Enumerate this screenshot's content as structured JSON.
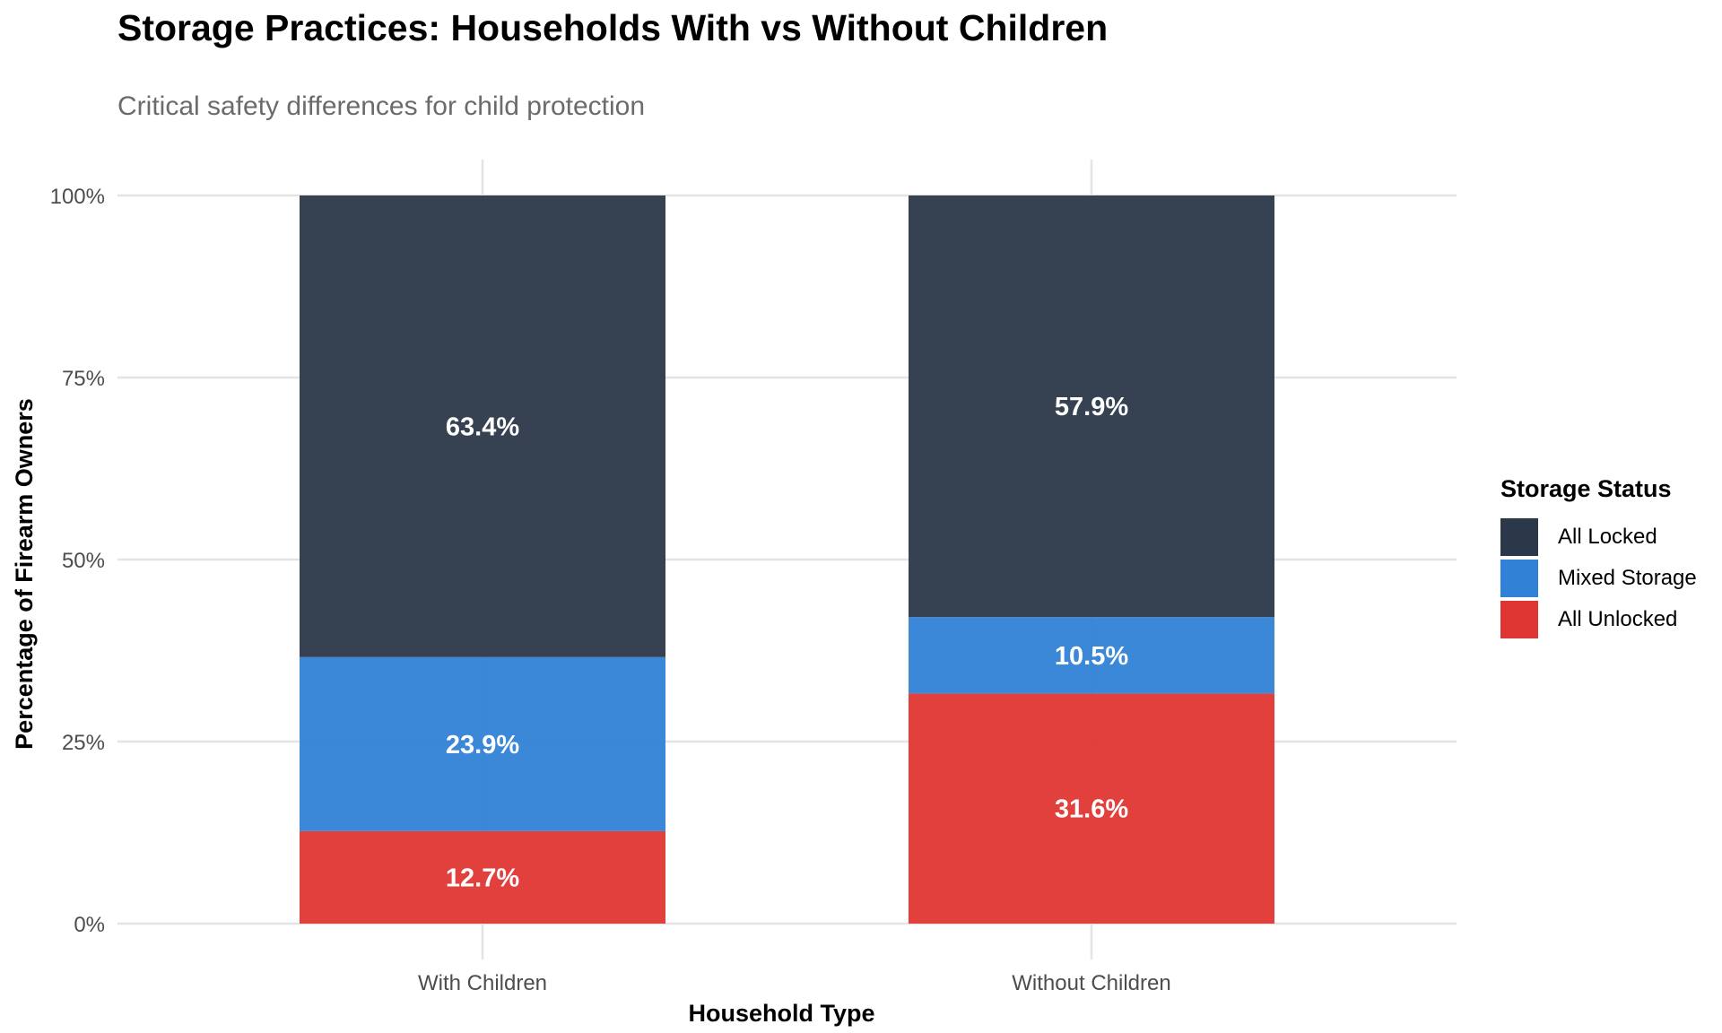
{
  "chart_data": {
    "type": "bar",
    "stacked": true,
    "title": "Storage Practices: Households With vs Without Children",
    "subtitle": "Critical safety differences for child protection",
    "xlabel": "Household Type",
    "ylabel": "Percentage of Firearm Owners",
    "categories": [
      "With Children",
      "Without Children"
    ],
    "ylim": [
      0,
      100
    ],
    "yticks": [
      0,
      25,
      50,
      75,
      100
    ],
    "ytick_labels": [
      "0%",
      "25%",
      "50%",
      "75%",
      "100%"
    ],
    "grid": true,
    "legend_title": "Storage Status",
    "legend_position": "right",
    "series": [
      {
        "name": "All Locked",
        "color": "#2b3849",
        "values": [
          63.4,
          57.9
        ],
        "labels": [
          "63.4%",
          "57.9%"
        ]
      },
      {
        "name": "Mixed Storage",
        "color": "#3182d6",
        "values": [
          23.9,
          10.5
        ],
        "labels": [
          "23.9%",
          "10.5%"
        ]
      },
      {
        "name": "All Unlocked",
        "color": "#e03633",
        "values": [
          12.7,
          31.6
        ],
        "labels": [
          "12.7%",
          "31.6%"
        ]
      }
    ]
  }
}
